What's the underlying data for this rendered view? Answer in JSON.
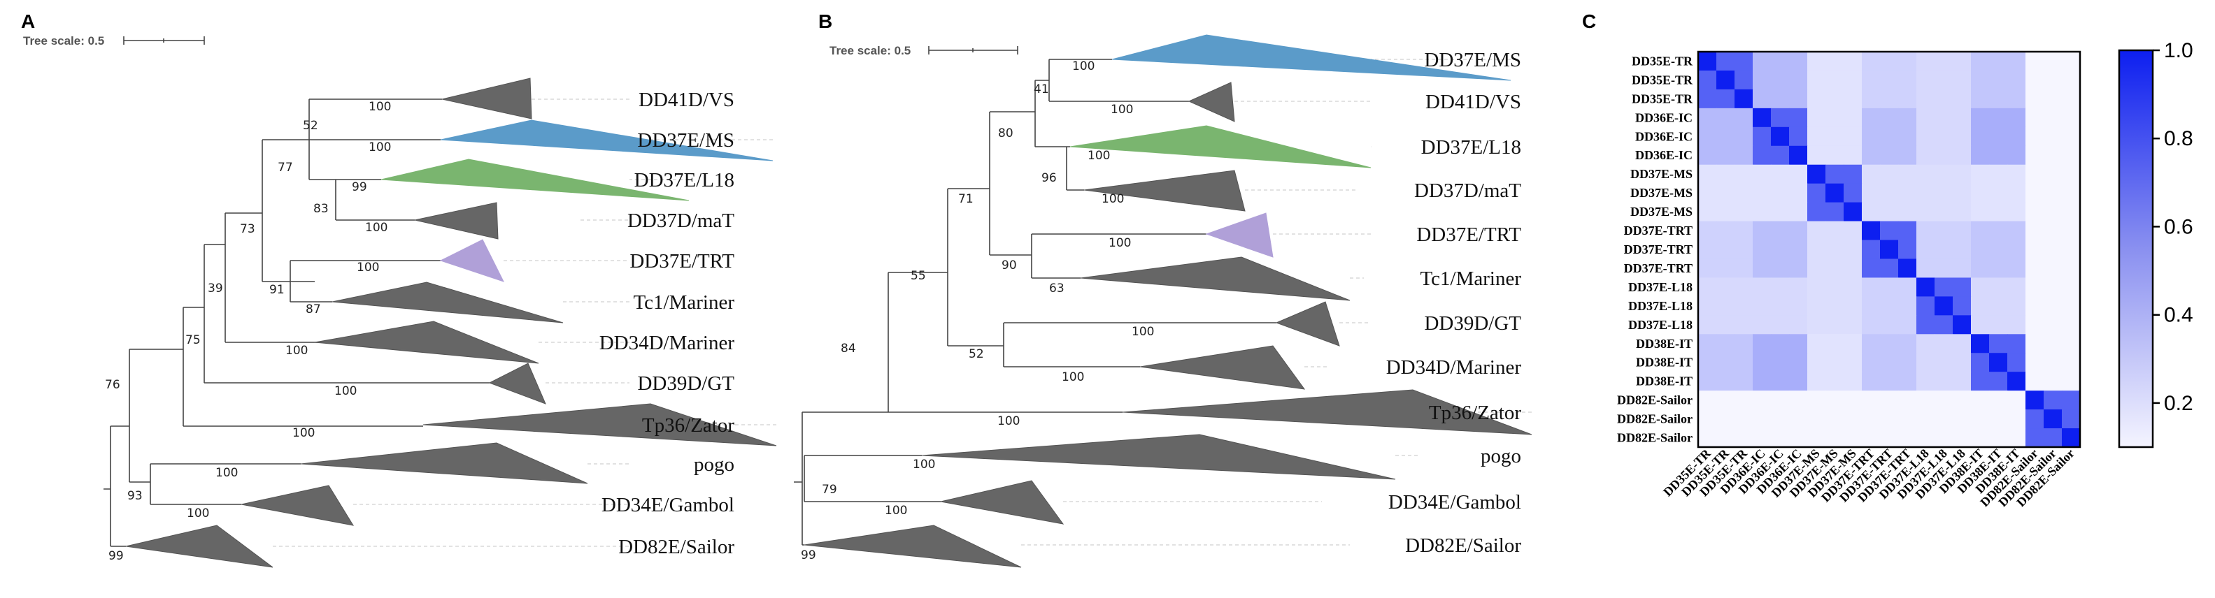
{
  "panels": [
    {
      "letter": "A",
      "scale_text": "Tree scale: 0.5",
      "taxa": [
        {
          "name": "DD41D/VS",
          "color": "#666666"
        },
        {
          "name": "DD37E/MS",
          "color": "#5b9bc9"
        },
        {
          "name": "DD37E/L18",
          "color": "#7ab56f"
        },
        {
          "name": "DD37D/maT",
          "color": "#666666"
        },
        {
          "name": "DD37E/TRT",
          "color": "#b0a0d8"
        },
        {
          "name": "Tc1/Mariner",
          "color": "#666666"
        },
        {
          "name": "DD34D/Mariner",
          "color": "#666666"
        },
        {
          "name": "DD39D/GT",
          "color": "#666666"
        },
        {
          "name": "Tp36/Zator",
          "color": "#666666"
        },
        {
          "name": "pogo",
          "color": "#666666"
        },
        {
          "name": "DD34E/Gambol",
          "color": "#666666"
        },
        {
          "name": "DD82E/Sailor",
          "color": "#666666"
        }
      ],
      "bootstraps": [
        "100",
        "52",
        "100",
        "77",
        "99",
        "83",
        "100",
        "73",
        "100",
        "91",
        "87",
        "39",
        "75",
        "100",
        "100",
        "76",
        "100",
        "93",
        "100",
        "100",
        "99"
      ]
    },
    {
      "letter": "B",
      "scale_text": "Tree scale: 0.5",
      "taxa": [
        {
          "name": "DD37E/MS",
          "color": "#5b9bc9"
        },
        {
          "name": "DD41D/VS",
          "color": "#666666"
        },
        {
          "name": "DD37E/L18",
          "color": "#7ab56f"
        },
        {
          "name": "DD37D/maT",
          "color": "#666666"
        },
        {
          "name": "DD37E/TRT",
          "color": "#b0a0d8"
        },
        {
          "name": "Tc1/Mariner",
          "color": "#666666"
        },
        {
          "name": "DD39D/GT",
          "color": "#666666"
        },
        {
          "name": "DD34D/Mariner",
          "color": "#666666"
        },
        {
          "name": "Tp36/Zator",
          "color": "#666666"
        },
        {
          "name": "pogo",
          "color": "#666666"
        },
        {
          "name": "DD34E/Gambol",
          "color": "#666666"
        },
        {
          "name": "DD82E/Sailor",
          "color": "#666666"
        }
      ],
      "bootstraps": [
        "100",
        "41",
        "100",
        "80",
        "100",
        "96",
        "100",
        "71",
        "100",
        "90",
        "63",
        "55",
        "100",
        "52",
        "100",
        "84",
        "100",
        "100",
        "79",
        "100",
        "99"
      ]
    }
  ],
  "heatmap": {
    "letter": "C",
    "labels": [
      "DD35E-TR",
      "DD35E-TR",
      "DD35E-TR",
      "DD36E-IC",
      "DD36E-IC",
      "DD36E-IC",
      "DD37E-MS",
      "DD37E-MS",
      "DD37E-MS",
      "DD37E-TRT",
      "DD37E-TRT",
      "DD37E-TRT",
      "DD37E-L18",
      "DD37E-L18",
      "DD37E-L18",
      "DD38E-IT",
      "DD38E-IT",
      "DD38E-IT",
      "DD82E-Sailor",
      "DD82E-Sailor",
      "DD82E-Sailor"
    ],
    "group_sizes": [
      3,
      3,
      3,
      3,
      3,
      3,
      3
    ],
    "within_group_value": 0.72,
    "between_group_matrix": [
      [
        0,
        0.35,
        0.18,
        0.25,
        0.22,
        0.3,
        0.1
      ],
      [
        0.35,
        0,
        0.18,
        0.33,
        0.22,
        0.4,
        0.08
      ],
      [
        0.18,
        0.18,
        0,
        0.2,
        0.2,
        0.18,
        0.08
      ],
      [
        0.25,
        0.33,
        0.2,
        0,
        0.25,
        0.3,
        0.08
      ],
      [
        0.22,
        0.22,
        0.2,
        0.25,
        0,
        0.22,
        0.1
      ],
      [
        0.3,
        0.4,
        0.18,
        0.3,
        0.22,
        0,
        0.08
      ],
      [
        0.1,
        0.08,
        0.08,
        0.08,
        0.1,
        0.08,
        0
      ]
    ],
    "colorbar": {
      "min": 0.1,
      "max": 1.0,
      "ticks": [
        "1.0",
        "0.8",
        "0.6",
        "0.4",
        "0.2"
      ]
    }
  }
}
